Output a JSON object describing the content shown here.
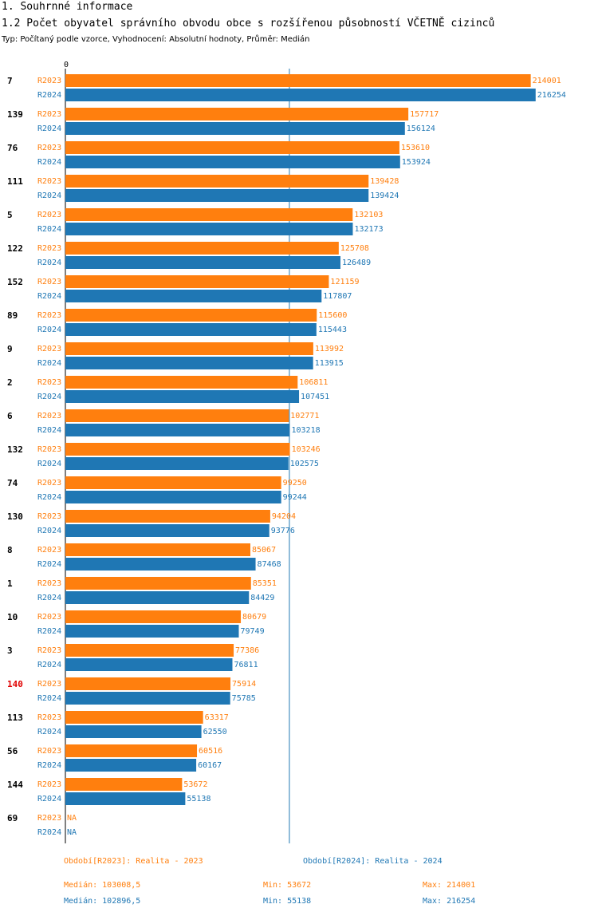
{
  "heading": "1. Souhrnné informace",
  "title": "1.2 Počet obyvatel správního obvodu obce s rozšířenou působností VČETNĚ cizinců",
  "subtitle": "Typ: Počítaný podle vzorce, Vyhodnocení: Absolutní hodnoty, Průměr: Medián",
  "colors": {
    "r2023": "#ff7f0e",
    "r2024": "#1f77b4",
    "highlight": "#e00000",
    "axis": "#000000"
  },
  "chart_data": {
    "type": "bar",
    "orientation": "horizontal",
    "x_axis_tick": "0",
    "xlim": [
      0,
      220000
    ],
    "median_line": 103008.5,
    "highlight_category": "140",
    "categories": [
      "7",
      "139",
      "76",
      "111",
      "5",
      "122",
      "152",
      "89",
      "9",
      "2",
      "6",
      "132",
      "74",
      "130",
      "8",
      "1",
      "10",
      "3",
      "140",
      "113",
      "56",
      "144",
      "69"
    ],
    "series": [
      {
        "name": "R2023",
        "values": [
          214001,
          157717,
          153610,
          139428,
          132103,
          125708,
          121159,
          115600,
          113992,
          106811,
          102771,
          103246,
          99250,
          94204,
          85067,
          85351,
          80679,
          77386,
          75914,
          63317,
          60516,
          53672,
          null
        ]
      },
      {
        "name": "R2024",
        "values": [
          216254,
          156124,
          153924,
          139424,
          132173,
          126489,
          117807,
          115443,
          113915,
          107451,
          103218,
          102575,
          99244,
          93776,
          87468,
          84429,
          79749,
          76811,
          75785,
          62550,
          60167,
          55138,
          null
        ]
      }
    ],
    "na_label": "NA"
  },
  "legend": {
    "r2023": "Období[R2023]: Realita - 2023",
    "r2024": "Období[R2024]: Realita - 2024"
  },
  "stats": {
    "r2023": {
      "median": "Medián: 103008,5",
      "min": "Min: 53672",
      "max": "Max: 214001"
    },
    "r2024": {
      "median": "Medián: 102896,5",
      "min": "Min: 55138",
      "max": "Max: 216254"
    }
  }
}
